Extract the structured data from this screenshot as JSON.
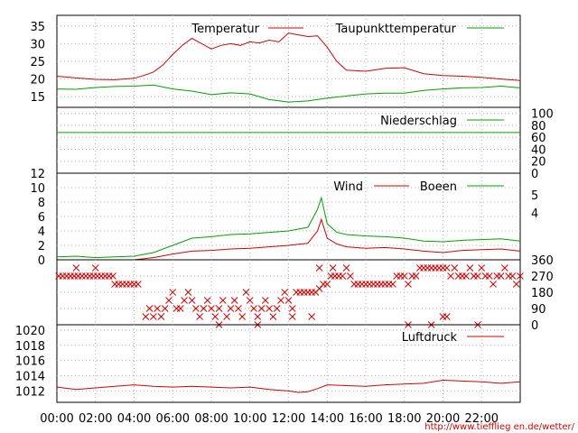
{
  "credit": "http://www.tiefflieg en.de/wetter/",
  "time_labels": [
    "00:00",
    "02:00",
    "04:00",
    "06:00",
    "08:00",
    "10:00",
    "12:00",
    "14:00",
    "16:00",
    "18:00",
    "20:00",
    "22:00"
  ],
  "chart_data": [
    {
      "type": "line",
      "y_ticks": [
        "15",
        "20",
        "25",
        "30",
        "35"
      ],
      "ylim": [
        12,
        38
      ],
      "series": [
        {
          "name": "Temperatur",
          "color": "#d40000",
          "x": [
            0,
            1,
            2,
            3,
            4,
            4.5,
            5,
            5.5,
            6,
            6.5,
            7,
            7.5,
            8,
            8.5,
            9,
            9.5,
            10,
            10.5,
            11,
            11.5,
            12,
            12.5,
            13,
            13.5,
            14,
            14.5,
            15,
            16,
            17,
            18,
            19,
            20,
            21,
            22,
            23,
            24
          ],
          "y": [
            20.8,
            20.3,
            19.9,
            19.8,
            20.2,
            21.0,
            22.0,
            24.0,
            27.0,
            29.5,
            31.5,
            30.0,
            28.5,
            29.5,
            30.0,
            29.5,
            30.5,
            30.2,
            31.0,
            30.5,
            33.0,
            32.5,
            32.0,
            32.2,
            29.0,
            25.0,
            22.5,
            22.2,
            23.0,
            23.2,
            21.5,
            21.0,
            20.8,
            20.5,
            20.0,
            19.6
          ]
        },
        {
          "name": "Taupunkttemperatur",
          "color": "#00a000",
          "x": [
            0,
            1,
            2,
            3,
            4,
            5,
            6,
            7,
            8,
            9,
            10,
            11,
            12,
            13,
            14,
            15,
            16,
            17,
            18,
            19,
            20,
            21,
            22,
            23,
            24
          ],
          "y": [
            17.2,
            17.1,
            17.6,
            17.9,
            18.0,
            18.3,
            17.2,
            16.6,
            15.6,
            16.1,
            15.8,
            14.2,
            13.5,
            13.8,
            14.6,
            15.2,
            15.8,
            16.0,
            16.0,
            16.8,
            17.2,
            17.5,
            17.6,
            18.0,
            17.5
          ]
        }
      ]
    },
    {
      "type": "line",
      "y_ticks": [
        "0",
        "20",
        "40",
        "60",
        "80",
        "100"
      ],
      "ylim": [
        0,
        110
      ],
      "series": [
        {
          "name": "Niederschlag",
          "color": "#00a000",
          "x": [
            0,
            24
          ],
          "y": [
            68,
            68
          ]
        }
      ]
    },
    {
      "type": "line",
      "y_ticks": [
        "0",
        "2",
        "4",
        "6",
        "8",
        "10",
        "12"
      ],
      "right_ticks": [
        "4",
        "5"
      ],
      "ylim": [
        0,
        12
      ],
      "series": [
        {
          "name": "Wind",
          "color": "#d40000",
          "x": [
            0,
            2,
            4,
            5,
            6,
            7,
            8,
            9,
            10,
            11,
            12,
            13,
            13.5,
            13.7,
            14,
            14.5,
            15,
            16,
            17,
            18,
            19,
            20,
            21,
            22,
            23,
            24
          ],
          "y": [
            0,
            0,
            0,
            0.3,
            0.8,
            1.2,
            1.3,
            1.5,
            1.6,
            1.8,
            2.0,
            2.3,
            4.0,
            5.6,
            3.0,
            2.2,
            1.8,
            1.6,
            1.7,
            1.5,
            1.2,
            1.0,
            1.3,
            1.4,
            1.5,
            1.2
          ]
        },
        {
          "name": "Boeen",
          "color": "#00a000",
          "x": [
            0,
            1,
            2,
            3,
            4,
            5,
            6,
            7,
            8,
            9,
            10,
            11,
            12,
            13,
            13.5,
            13.7,
            14,
            14.5,
            15,
            16,
            17,
            18,
            19,
            20,
            21,
            22,
            23,
            24
          ],
          "y": [
            0.4,
            0.5,
            0.3,
            0.4,
            0.5,
            1.0,
            2.0,
            3.0,
            3.2,
            3.5,
            3.6,
            3.8,
            4.0,
            4.5,
            7.0,
            8.6,
            5.0,
            3.8,
            3.5,
            3.3,
            3.2,
            3.0,
            2.6,
            2.5,
            2.7,
            2.8,
            2.9,
            2.6
          ]
        }
      ]
    },
    {
      "type": "scatter",
      "y_ticks": [
        "0",
        "90",
        "180",
        "270",
        "360"
      ],
      "ylim": [
        0,
        360
      ],
      "series": [
        {
          "name": "",
          "color": "#d40000",
          "points": [
            [
              0.1,
              270
            ],
            [
              0.3,
              270
            ],
            [
              0.5,
              270
            ],
            [
              0.7,
              270
            ],
            [
              0.9,
              270
            ],
            [
              1.1,
              270
            ],
            [
              1.3,
              270
            ],
            [
              1.5,
              270
            ],
            [
              1.7,
              270
            ],
            [
              1.9,
              270
            ],
            [
              2.1,
              270
            ],
            [
              2.3,
              270
            ],
            [
              2.5,
              270
            ],
            [
              2.7,
              270
            ],
            [
              2.9,
              270
            ],
            [
              1.0,
              315
            ],
            [
              2.0,
              315
            ],
            [
              3.0,
              225
            ],
            [
              3.2,
              225
            ],
            [
              3.4,
              225
            ],
            [
              3.6,
              225
            ],
            [
              3.8,
              225
            ],
            [
              4.0,
              225
            ],
            [
              4.2,
              225
            ],
            [
              4.6,
              45
            ],
            [
              4.8,
              90
            ],
            [
              5.0,
              45
            ],
            [
              5.2,
              90
            ],
            [
              5.4,
              45
            ],
            [
              5.6,
              90
            ],
            [
              5.8,
              135
            ],
            [
              6.0,
              180
            ],
            [
              6.2,
              90
            ],
            [
              6.4,
              90
            ],
            [
              6.6,
              135
            ],
            [
              6.8,
              180
            ],
            [
              7.0,
              135
            ],
            [
              7.2,
              90
            ],
            [
              7.4,
              45
            ],
            [
              7.6,
              90
            ],
            [
              7.8,
              135
            ],
            [
              8.0,
              90
            ],
            [
              8.2,
              45
            ],
            [
              8.4,
              90
            ],
            [
              8.6,
              135
            ],
            [
              8.8,
              45
            ],
            [
              9.0,
              90
            ],
            [
              9.2,
              135
            ],
            [
              9.4,
              90
            ],
            [
              9.6,
              45
            ],
            [
              9.8,
              180
            ],
            [
              10.0,
              135
            ],
            [
              10.2,
              90
            ],
            [
              10.4,
              45
            ],
            [
              10.6,
              90
            ],
            [
              10.8,
              135
            ],
            [
              11.0,
              90
            ],
            [
              11.2,
              45
            ],
            [
              11.4,
              90
            ],
            [
              11.6,
              135
            ],
            [
              11.8,
              180
            ],
            [
              12.0,
              135
            ],
            [
              12.2,
              90
            ],
            [
              12.4,
              180
            ],
            [
              12.6,
              180
            ],
            [
              12.8,
              180
            ],
            [
              13.0,
              180
            ],
            [
              13.2,
              180
            ],
            [
              13.4,
              180
            ],
            [
              13.6,
              200
            ],
            [
              13.8,
              225
            ],
            [
              14.0,
              225
            ],
            [
              14.2,
              270
            ],
            [
              14.4,
              270
            ],
            [
              14.6,
              270
            ],
            [
              14.8,
              270
            ],
            [
              15.0,
              315
            ],
            [
              15.2,
              270
            ],
            [
              15.4,
              225
            ],
            [
              15.6,
              225
            ],
            [
              15.8,
              225
            ],
            [
              16.0,
              225
            ],
            [
              16.2,
              225
            ],
            [
              16.4,
              225
            ],
            [
              16.6,
              225
            ],
            [
              16.8,
              225
            ],
            [
              17.0,
              225
            ],
            [
              17.2,
              225
            ],
            [
              17.4,
              225
            ],
            [
              17.6,
              270
            ],
            [
              17.8,
              270
            ],
            [
              18.0,
              270
            ],
            [
              18.2,
              225
            ],
            [
              18.4,
              270
            ],
            [
              18.6,
              270
            ],
            [
              18.8,
              315
            ],
            [
              19.0,
              315
            ],
            [
              19.2,
              315
            ],
            [
              19.4,
              315
            ],
            [
              19.6,
              315
            ],
            [
              19.8,
              315
            ],
            [
              20.0,
              315
            ],
            [
              20.2,
              315
            ],
            [
              20.4,
              270
            ],
            [
              20.6,
              315
            ],
            [
              20.8,
              270
            ],
            [
              21.0,
              270
            ],
            [
              21.2,
              270
            ],
            [
              21.4,
              315
            ],
            [
              21.6,
              270
            ],
            [
              21.8,
              270
            ],
            [
              22.0,
              315
            ],
            [
              22.2,
              270
            ],
            [
              22.4,
              270
            ],
            [
              22.6,
              225
            ],
            [
              22.8,
              270
            ],
            [
              23.0,
              270
            ],
            [
              23.2,
              315
            ],
            [
              23.4,
              270
            ],
            [
              23.6,
              270
            ],
            [
              23.8,
              225
            ],
            [
              24.0,
              270
            ],
            [
              14.3,
              315
            ],
            [
              13.2,
              45
            ],
            [
              13.6,
              315
            ],
            [
              18.2,
              0
            ],
            [
              19.4,
              0
            ],
            [
              20.0,
              45
            ],
            [
              20.2,
              45
            ],
            [
              21.8,
              0
            ],
            [
              8.4,
              0
            ],
            [
              10.4,
              0
            ],
            [
              12.2,
              45
            ]
          ]
        }
      ]
    },
    {
      "type": "line",
      "y_ticks": [
        "1012",
        "1014",
        "1016",
        "1018",
        "1020"
      ],
      "ylim": [
        1010.5,
        1020.7
      ],
      "series": [
        {
          "name": "Luftdruck",
          "color": "#d40000",
          "x": [
            0,
            1,
            2,
            3,
            4,
            5,
            6,
            7,
            8,
            9,
            10,
            11,
            12,
            12.5,
            13,
            13.5,
            14,
            15,
            16,
            17,
            18,
            19,
            20,
            21,
            22,
            23,
            24
          ],
          "y": [
            1012.5,
            1012.2,
            1012.4,
            1012.6,
            1012.8,
            1012.6,
            1012.5,
            1012.6,
            1012.5,
            1012.4,
            1012.5,
            1012.2,
            1012.0,
            1011.8,
            1011.9,
            1012.3,
            1012.8,
            1012.7,
            1012.6,
            1012.8,
            1012.9,
            1013.0,
            1013.4,
            1013.3,
            1013.2,
            1013.0,
            1013.2
          ]
        }
      ]
    }
  ]
}
